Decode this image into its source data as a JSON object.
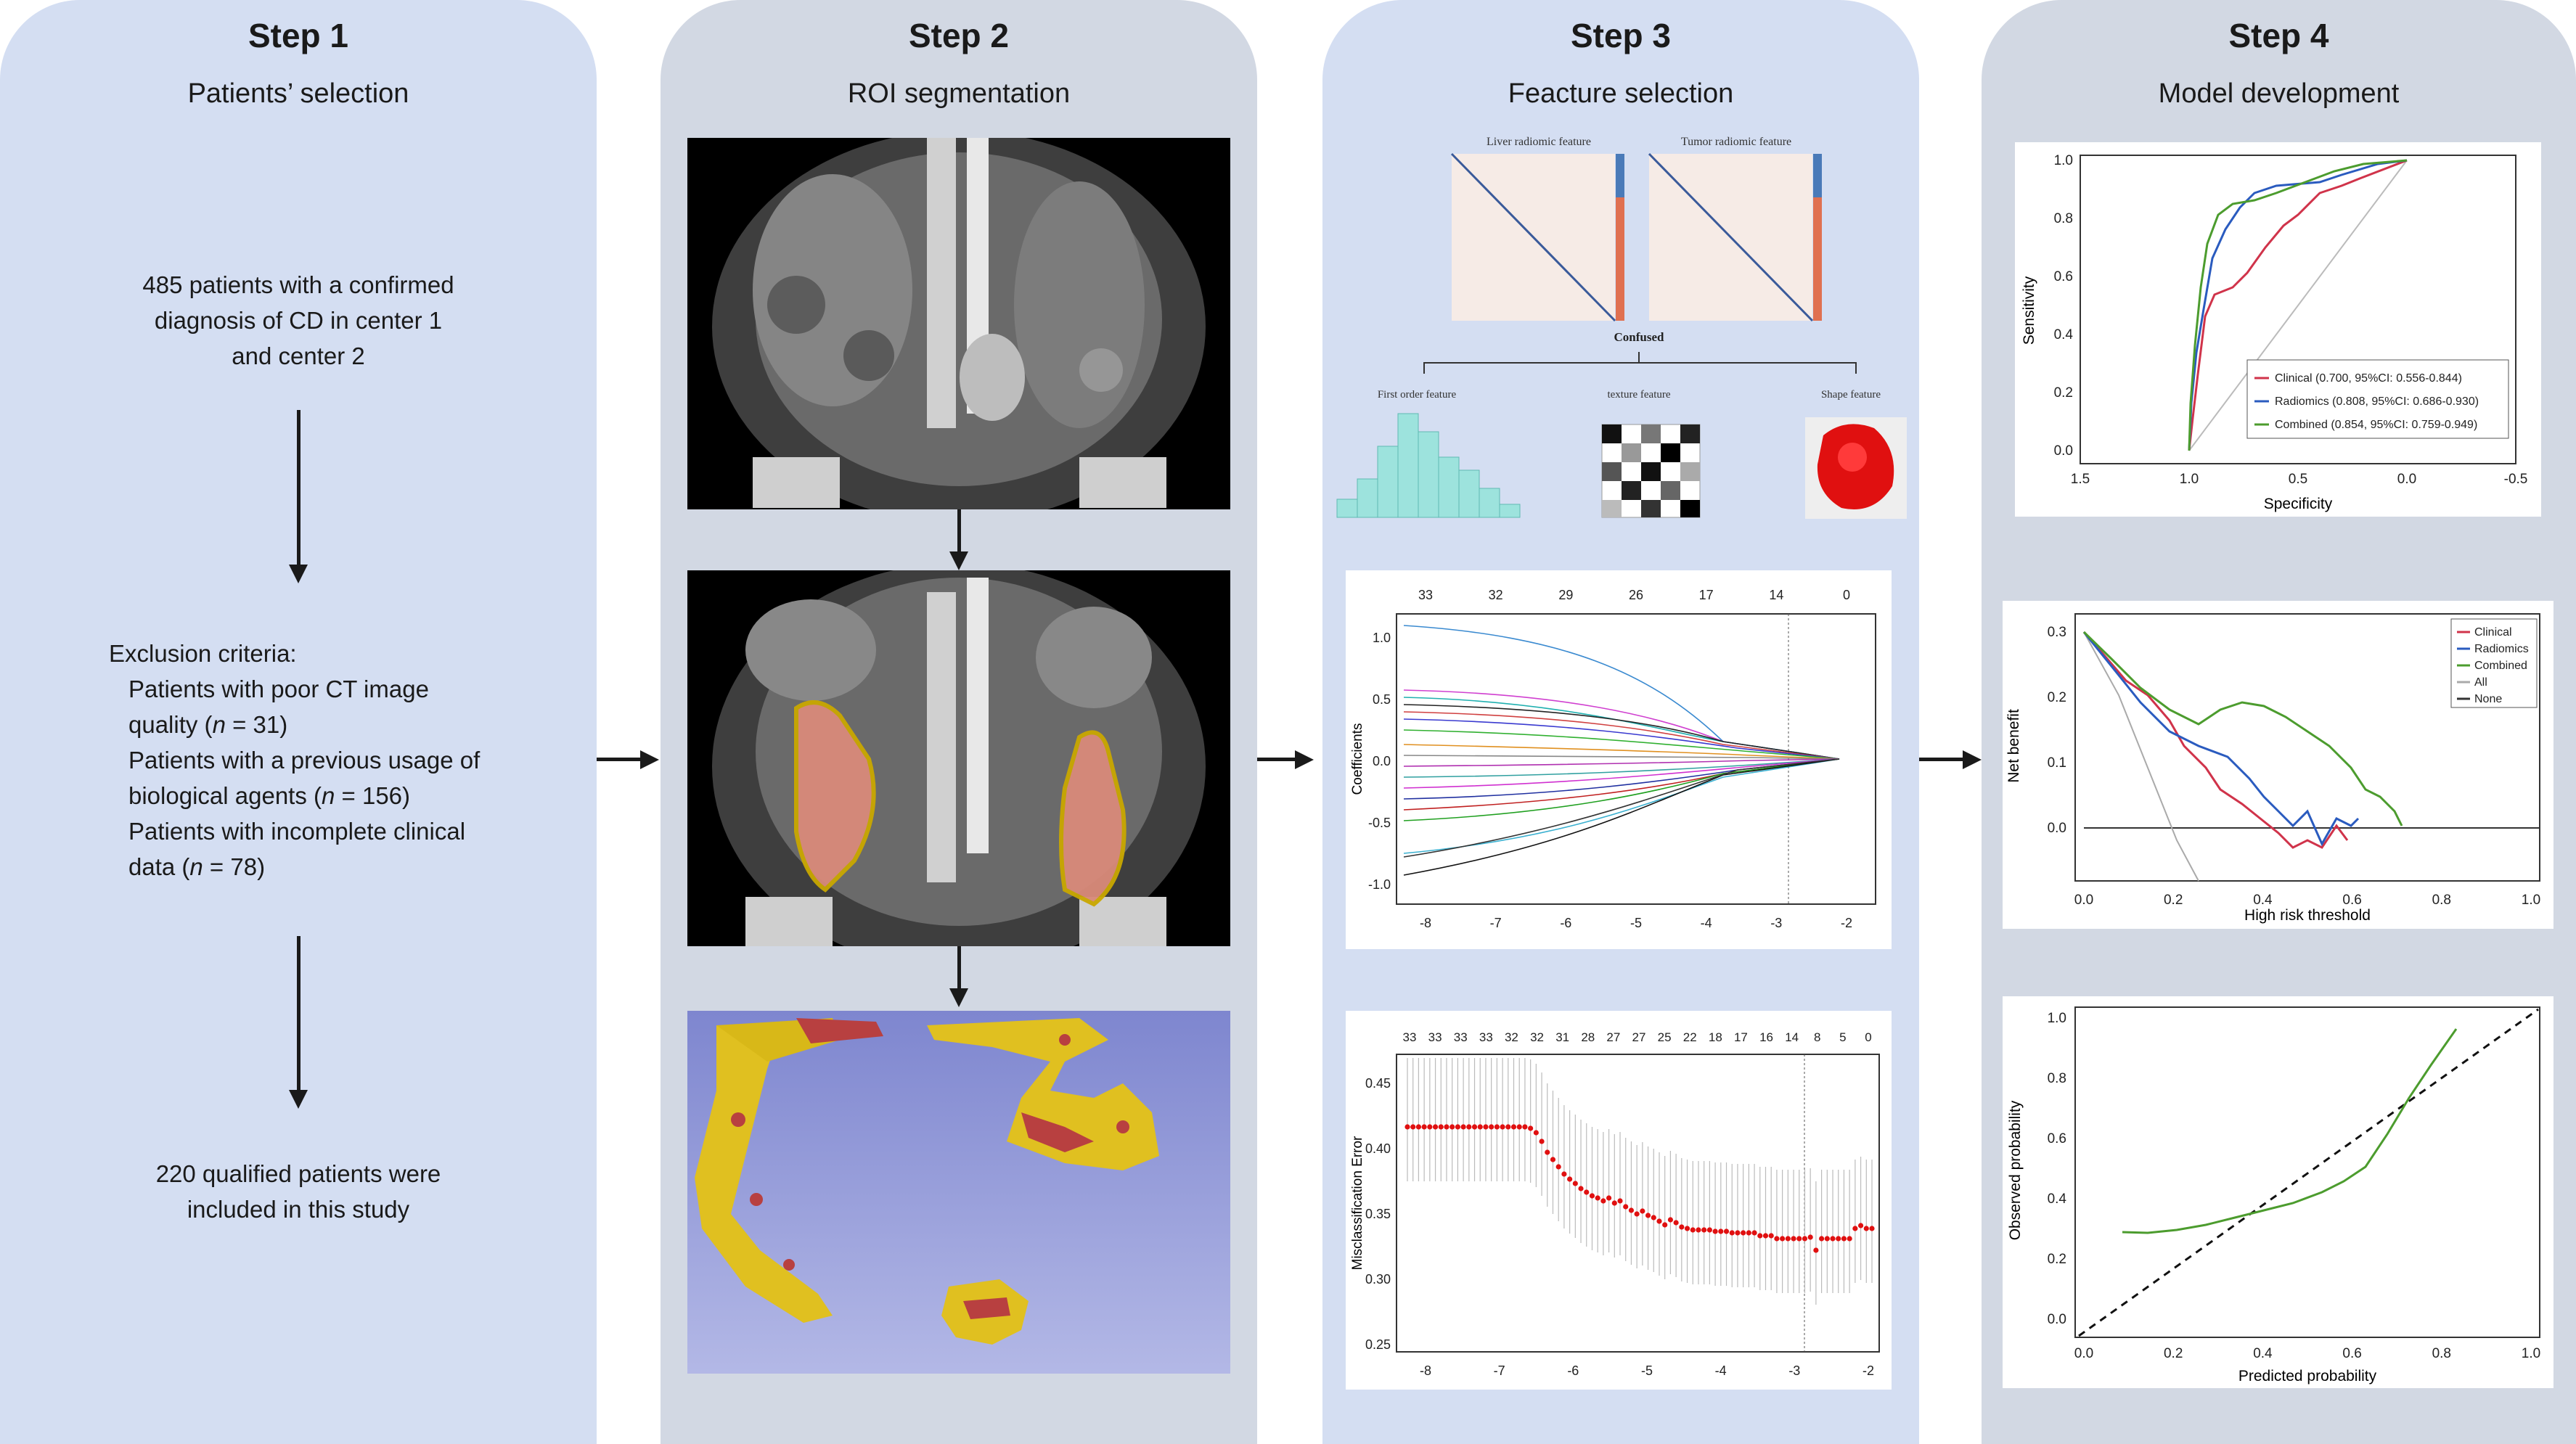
{
  "steps": [
    {
      "title": "Step 1",
      "subtitle": "Patients’ selection"
    },
    {
      "title": "Step 2",
      "subtitle": "ROI segmentation"
    },
    {
      "title": "Step 3",
      "subtitle": "Feacture selection"
    },
    {
      "title": "Step 4",
      "subtitle": "Model development"
    }
  ],
  "step1": {
    "patients_line1": "485 patients with a confirmed",
    "patients_line2": "diagnosis of CD  in center 1",
    "patients_line3": "and center 2",
    "exclusion_title": "Exclusion criteria:",
    "exc1_line1": "Patients with poor CT image",
    "exc1_line2_pre": "quality (",
    "exc1_var": "n",
    "exc1_line2_post": " = 31)",
    "exc2_line1": "Patients with a previous usage of",
    "exc2_line2_pre": "biological agents (",
    "exc2_var": "n",
    "exc2_line2_post": " = 156)",
    "exc3_line1": "Patients with incomplete clinical",
    "exc3_line2_pre": "data (",
    "exc3_var": "n",
    "exc3_line2_post": " = 78)",
    "final_line1": "220 qualified patients were",
    "final_line2": "included in this study"
  },
  "step3_top": {
    "heatmap1_title": "Liver radiomic feature",
    "heatmap2_title": "Tumor radiomic feature",
    "confused": "Confused",
    "first_order": "First order feature",
    "texture": "texture feature",
    "shape": "Shape feature"
  },
  "lasso_coef": {
    "top_ticks": [
      "33",
      "32",
      "29",
      "26",
      "17",
      "14",
      "0"
    ],
    "x_ticks": [
      "-8",
      "-7",
      "-6",
      "-5",
      "-4",
      "-3",
      "-2"
    ],
    "y_ticks": [
      "1.0",
      "0.5",
      "0.0",
      "-0.5",
      "-1.0"
    ],
    "ylabel": "Coefficients"
  },
  "lasso_cv": {
    "top_ticks": [
      "33",
      "33",
      "33",
      "33",
      "32",
      "32",
      "31",
      "28",
      "27",
      "27",
      "25",
      "22",
      "18",
      "17",
      "16",
      "14",
      "8",
      "5",
      "0"
    ],
    "x_ticks": [
      "-8",
      "-7",
      "-6",
      "-5",
      "-4",
      "-3",
      "-2"
    ],
    "y_ticks": [
      "0.45",
      "0.40",
      "0.35",
      "0.30",
      "0.25"
    ],
    "ylabel": "Misclassification Error"
  },
  "roc": {
    "ylabel": "Sensitivity",
    "xlabel": "Specificity",
    "x_ticks": [
      "1.5",
      "1.0",
      "0.5",
      "0.0",
      "-0.5"
    ],
    "y_ticks": [
      "1.0",
      "0.8",
      "0.6",
      "0.4",
      "0.2",
      "0.0"
    ],
    "legend": [
      {
        "label": "Clinical (0.700, 95%CI: 0.556-0.844)",
        "color": "#d0334a"
      },
      {
        "label": "Radiomics (0.808, 95%CI: 0.686-0.930)",
        "color": "#2a5bbf"
      },
      {
        "label": "Combined (0.854, 95%CI: 0.759-0.949)",
        "color": "#4c9c2e"
      }
    ]
  },
  "dca": {
    "ylabel": "Net benefit",
    "xlabel": "High risk threshold",
    "x_ticks": [
      "0.0",
      "0.2",
      "0.4",
      "0.6",
      "0.8",
      "1.0"
    ],
    "y_ticks": [
      "0.3",
      "0.2",
      "0.1",
      "0.0"
    ],
    "legend": [
      {
        "label": "Clinical",
        "color": "#d0334a"
      },
      {
        "label": "Radiomics",
        "color": "#2a5bbf"
      },
      {
        "label": "Combined",
        "color": "#4c9c2e"
      },
      {
        "label": "All",
        "color": "#aaaaaa"
      },
      {
        "label": "None",
        "color": "#333333"
      }
    ]
  },
  "calibration": {
    "ylabel": "Observed probability",
    "xlabel": "Predicted probability",
    "x_ticks": [
      "0.0",
      "0.2",
      "0.4",
      "0.6",
      "0.8",
      "1.0"
    ],
    "y_ticks": [
      "1.0",
      "0.8",
      "0.6",
      "0.4",
      "0.2",
      "0.0"
    ]
  },
  "colors": {
    "panel_bg_step1": "#d4def2",
    "panel_bg_step2": "#d2d8e3",
    "panel_bg_step3": "#d4def2",
    "panel_bg_step4": "#d2d8e3",
    "histogram": "#9de3dd",
    "shape_red": "#e01010"
  }
}
